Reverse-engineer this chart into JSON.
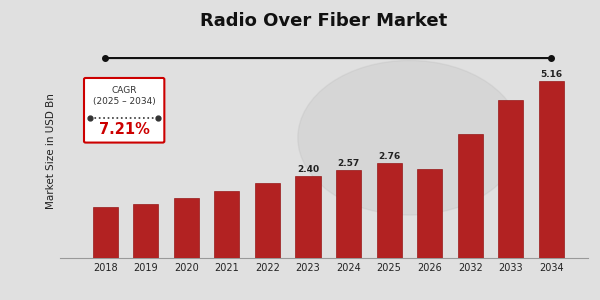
{
  "title": "Radio Over Fiber Market",
  "ylabel": "Market Size in USD Bn",
  "years": [
    2018,
    2019,
    2020,
    2021,
    2022,
    2023,
    2024,
    2025,
    2026,
    2032,
    2033,
    2034
  ],
  "values": [
    1.48,
    1.58,
    1.75,
    1.95,
    2.18,
    2.4,
    2.57,
    2.76,
    2.58,
    3.62,
    4.6,
    5.16
  ],
  "labeled_values": {
    "2023": "2.40",
    "2024": "2.57",
    "2025": "2.76",
    "2034": "5.16"
  },
  "bar_color": "#B22222",
  "bar_edge_color": "#8B0000",
  "background_color": "#E0E0E0",
  "title_fontsize": 13,
  "cagr_text": "CAGR\n(2025 – 2034)",
  "cagr_value": "7.21%",
  "cagr_value_color": "#CC0000",
  "arrow_color": "#111111",
  "box_edge_color": "#CC0000",
  "dotted_line_color": "#333333",
  "ylim": [
    0,
    6.2
  ]
}
